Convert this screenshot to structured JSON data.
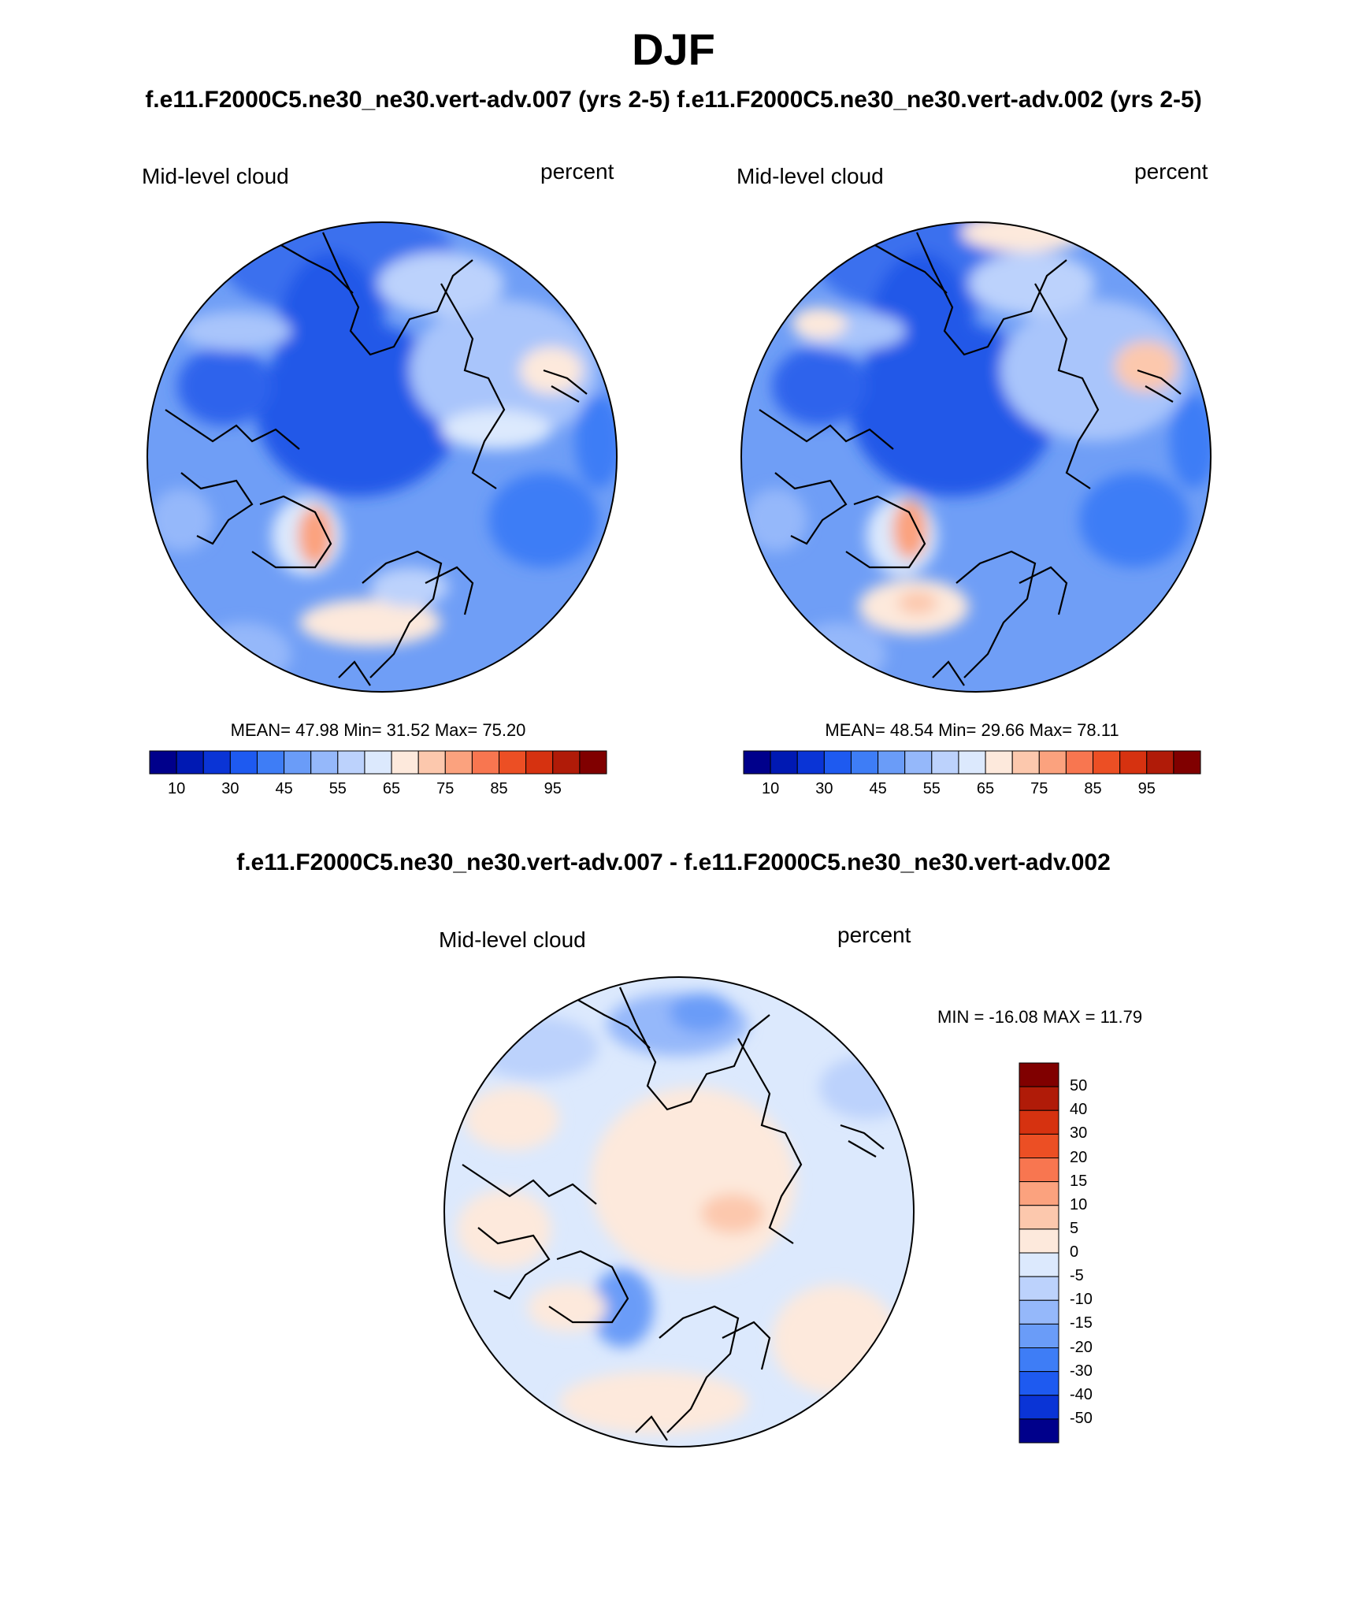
{
  "title": "DJF",
  "case_titles": "f.e11.F2000C5.ne30_ne30.vert-adv.007 (yrs 2-5) f.e11.F2000C5.ne30_ne30.vert-adv.002 (yrs 2-5)",
  "diff_title": "f.e11.F2000C5.ne30_ne30.vert-adv.007 - f.e11.F2000C5.ne30_ne30.vert-adv.002",
  "panels": [
    {
      "variable": "Mid-level cloud",
      "units": "percent",
      "stats": "MEAN=  47.98  Min=  31.52  Max=  75.20"
    },
    {
      "variable": "Mid-level cloud",
      "units": "percent",
      "stats": "MEAN=  48.54  Min=  29.66  Max=  78.11"
    },
    {
      "variable": "Mid-level cloud",
      "units": "percent",
      "stats": "MIN = -16.08 MAX =  11.79"
    }
  ],
  "colorbar_abs": {
    "ticks": [
      "10",
      "30",
      "45",
      "55",
      "65",
      "75",
      "85",
      "95"
    ],
    "colors": [
      "#00008b",
      "#0019b3",
      "#0a34d6",
      "#1e5af0",
      "#3e7df6",
      "#6a9cf8",
      "#95b8fa",
      "#bcd2fc",
      "#dce9fd",
      "#fde9dc",
      "#fcc8ad",
      "#fba27e",
      "#f87650",
      "#ec4f24",
      "#d63210",
      "#b01b08",
      "#800000"
    ]
  },
  "colorbar_diff": {
    "ticks": [
      "50",
      "40",
      "30",
      "20",
      "15",
      "10",
      "5",
      "0",
      "-5",
      "-10",
      "-15",
      "-20",
      "-30",
      "-40",
      "-50"
    ],
    "colors": [
      "#800000",
      "#b01b08",
      "#d63210",
      "#ec4f24",
      "#f87650",
      "#fba27e",
      "#fcc8ad",
      "#fde9dc",
      "#dce9fd",
      "#bcd2fc",
      "#95b8fa",
      "#6a9cf8",
      "#3e7df6",
      "#1e5af0",
      "#0a34d6",
      "#00008b"
    ]
  }
}
